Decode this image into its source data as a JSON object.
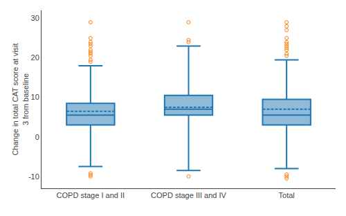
{
  "chart_data": {
    "type": "box",
    "categories": [
      "COPD stage I and II",
      "COPD stage III and IV",
      "Total"
    ],
    "ylabel": "Change in total CAT score at visit\n3 from baseline",
    "ylim": [
      -13,
      32
    ],
    "yticks": [
      -10,
      0,
      10,
      20,
      30
    ],
    "grid": false,
    "boxes": [
      {
        "q1": 3.0,
        "median": 5.5,
        "q3": 8.5,
        "whisker_low": -7.5,
        "whisker_high": 18.0,
        "mean": 6.5,
        "fliers_low": [
          -9.2,
          -9.6,
          -10.0
        ],
        "fliers_high": [
          19.0,
          19.5,
          20.5,
          21.0,
          21.5,
          22.0,
          23.0,
          23.5,
          24.0,
          25.0,
          29.0
        ]
      },
      {
        "q1": 5.5,
        "median": 7.0,
        "q3": 10.5,
        "whisker_low": -8.5,
        "whisker_high": 23.0,
        "mean": 7.5,
        "fliers_low": [
          -10.0
        ],
        "fliers_high": [
          24.0,
          24.5,
          29.0
        ]
      },
      {
        "q1": 3.0,
        "median": 5.5,
        "q3": 9.5,
        "whisker_low": -8.0,
        "whisker_high": 19.5,
        "mean": 7.0,
        "fliers_low": [
          -9.5,
          -10.0,
          -10.5
        ],
        "fliers_high": [
          20.5,
          21.0,
          22.0,
          22.5,
          23.0,
          23.5,
          24.0,
          25.0,
          27.0,
          28.0,
          29.0
        ]
      }
    ]
  }
}
